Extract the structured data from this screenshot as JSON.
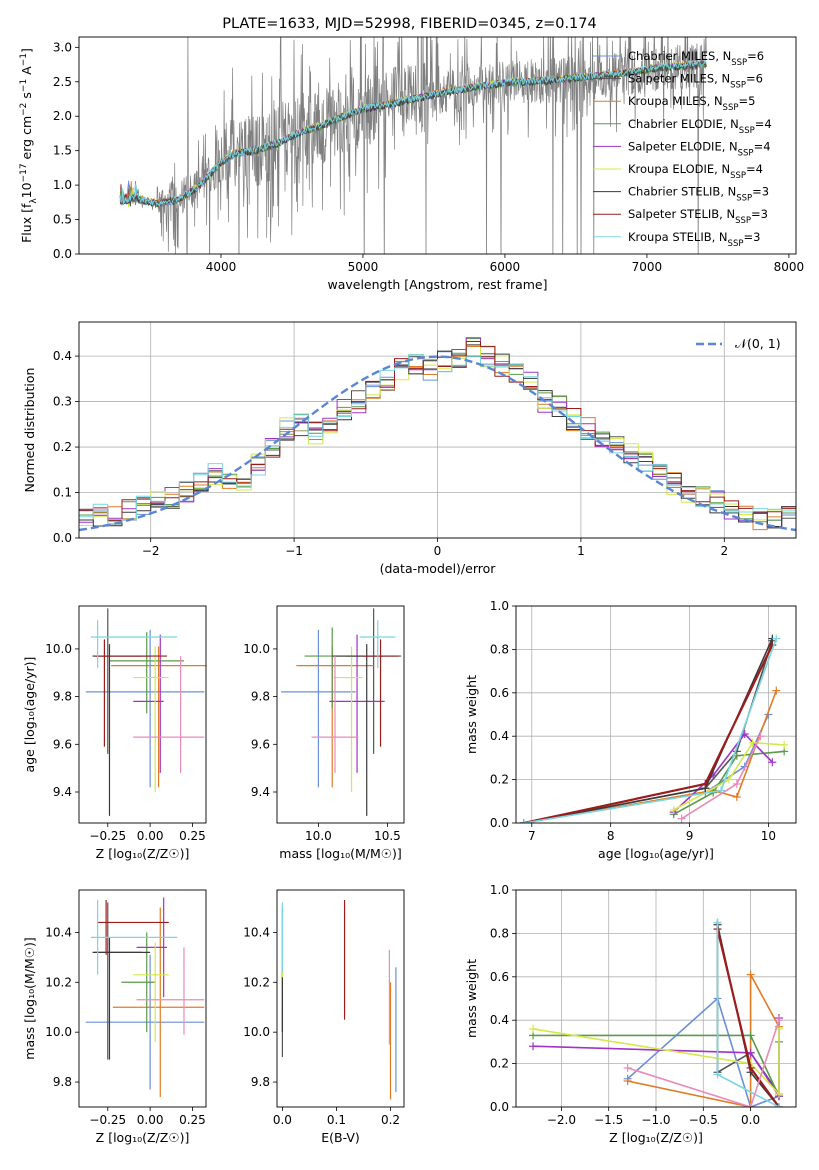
{
  "figure_title": "PLATE=1633, MJD=52998, FIBERID=0345, z=0.174",
  "series_styles": [
    {
      "label": "Chabrier MILES, N$_{SSP}$=6",
      "color": "#6a8fd8"
    },
    {
      "label": "Salpeter MILES, N$_{SSP}$=6",
      "color": "#555555"
    },
    {
      "label": "Kroupa MILES, N$_{SSP}$=5",
      "color": "#e07b24"
    },
    {
      "label": "Chabrier ELODIE, N$_{SSP}$=4",
      "color": "#5a9a4a"
    },
    {
      "label": "Salpeter ELODIE, N$_{SSP}$=4",
      "color": "#a133c7"
    },
    {
      "label": "Kroupa ELODIE, N$_{SSP}$=4",
      "color": "#d4e84a"
    },
    {
      "label": "Chabrier STELIB, N$_{SSP}$=3",
      "color": "#3a3a3a"
    },
    {
      "label": "Salpeter STELIB, N$_{SSP}$=3",
      "color": "#9b1c1c"
    },
    {
      "label": "Kroupa STELIB, N$_{SSP}$=3",
      "color": "#7ad6e0"
    }
  ],
  "legend_text": {
    "spectrum": [
      {
        "pre": "Chabrier MILES, N",
        "sub": "SSP",
        "post": "=6"
      },
      {
        "pre": "Salpeter MILES, N",
        "sub": "SSP",
        "post": "=6"
      },
      {
        "pre": "Kroupa MILES, N",
        "sub": "SSP",
        "post": "=5"
      },
      {
        "pre": "Chabrier ELODIE, N",
        "sub": "SSP",
        "post": "=4"
      },
      {
        "pre": "Salpeter ELODIE, N",
        "sub": "SSP",
        "post": "=4"
      },
      {
        "pre": "Kroupa ELODIE, N",
        "sub": "SSP",
        "post": "=4"
      },
      {
        "pre": "Chabrier STELIB, N",
        "sub": "SSP",
        "post": "=3"
      },
      {
        "pre": "Salpeter STELIB, N",
        "sub": "SSP",
        "post": "=3"
      },
      {
        "pre": "Kroupa STELIB, N",
        "sub": "SSP",
        "post": "=3"
      }
    ],
    "normal": "𝒩(0, 1)"
  },
  "chart_data": [
    {
      "id": "spectrum",
      "type": "line",
      "xlabel": "wavelength [Angstrom, rest frame]",
      "ylabel": "Flux [f_λ 10^-17 erg cm^-2 s^-1 A^-1]",
      "xlim": [
        3000,
        8050
      ],
      "ylim": [
        0,
        3.15
      ],
      "xticks": [
        4000,
        5000,
        6000,
        7000,
        8000
      ],
      "yticks": [
        0.0,
        0.5,
        1.0,
        1.5,
        2.0,
        2.5,
        3.0
      ],
      "grid": false,
      "legend": "top-right",
      "x": [
        3290,
        3400,
        3550,
        3700,
        3850,
        4000,
        4100,
        4250,
        4400,
        4550,
        4700,
        4850,
        5000,
        5150,
        5300,
        5450,
        5600,
        5750,
        5900,
        6050,
        6200,
        6350,
        6500,
        6650,
        6800,
        6950,
        7100,
        7250,
        7420
      ],
      "series_model": [
        0.75,
        0.8,
        0.72,
        0.78,
        0.98,
        1.32,
        1.45,
        1.5,
        1.6,
        1.75,
        1.85,
        1.98,
        2.1,
        2.15,
        2.22,
        2.28,
        2.35,
        2.4,
        2.45,
        2.48,
        2.5,
        2.52,
        2.55,
        2.58,
        2.6,
        2.65,
        2.7,
        2.72,
        2.75
      ]
    },
    {
      "id": "residuals",
      "type": "line",
      "xlabel": "(data-model)/error",
      "ylabel": "Normed distribution",
      "xlim": [
        -2.5,
        2.5
      ],
      "ylim": [
        0,
        0.475
      ],
      "xticks": [
        -2,
        -1,
        0,
        1,
        2
      ],
      "yticks": [
        0.0,
        0.1,
        0.2,
        0.3,
        0.4
      ],
      "grid": true,
      "legend": "top-right",
      "normal_curve": {
        "mean": 0,
        "sigma": 1
      },
      "hist_counts_reference": [
        0.04,
        0.05,
        0.05,
        0.06,
        0.07,
        0.08,
        0.09,
        0.1,
        0.12,
        0.14,
        0.13,
        0.13,
        0.16,
        0.2,
        0.24,
        0.25,
        0.23,
        0.25,
        0.28,
        0.3,
        0.33,
        0.35,
        0.37,
        0.38,
        0.37,
        0.39,
        0.4,
        0.42,
        0.4,
        0.38,
        0.36,
        0.34,
        0.3,
        0.29,
        0.26,
        0.24,
        0.22,
        0.2,
        0.19,
        0.17,
        0.15,
        0.12,
        0.1,
        0.09,
        0.08,
        0.06,
        0.05,
        0.04,
        0.04,
        0.05
      ]
    },
    {
      "id": "age_vs_Z",
      "type": "scatter",
      "xlabel": "Z [log₁₀(Z/Z☉)]",
      "ylabel": "age  [log₁₀(age/yr)]",
      "xlim": [
        -0.42,
        0.33
      ],
      "ylim": [
        9.27,
        10.18
      ],
      "xticks": [
        -0.25,
        0.0,
        0.25
      ],
      "yticks": [
        9.4,
        9.6,
        9.8,
        10.0
      ],
      "xtick_labels": [
        "−0.25",
        "0.00",
        "0.25"
      ],
      "points": [
        {
          "x": 0.0,
          "y": 9.82,
          "xerr": [
            0.38,
            0.32
          ],
          "yerr": [
            0.4,
            0.26
          ]
        },
        {
          "x": -0.25,
          "y": 9.97,
          "xerr": [
            0.08,
            0.2
          ],
          "yerr": [
            0.41,
            0.2
          ]
        },
        {
          "x": 0.05,
          "y": 9.93,
          "xerr": [
            0.28,
            0.28
          ],
          "yerr": [
            0.51,
            0.08
          ]
        },
        {
          "x": -0.02,
          "y": 9.95,
          "xerr": [
            0.22,
            0.22
          ],
          "yerr": [
            0.22,
            0.12
          ]
        },
        {
          "x": 0.06,
          "y": 9.78,
          "xerr": [
            0.16,
            0.02
          ],
          "yerr": [
            0.3,
            0.28
          ]
        },
        {
          "x": 0.03,
          "y": 9.88,
          "xerr": [
            0.13,
            0.08
          ],
          "yerr": [
            0.48,
            0.13
          ]
        },
        {
          "x": -0.24,
          "y": 9.97,
          "xerr": [
            0.1,
            0.24
          ],
          "yerr": [
            0.67,
            0.05
          ]
        },
        {
          "x": -0.27,
          "y": 9.97,
          "xerr": [
            0.05,
            0.37
          ],
          "yerr": [
            0.38,
            0.07
          ]
        },
        {
          "x": -0.31,
          "y": 10.05,
          "xerr": [
            0.04,
            0.47
          ],
          "yerr": [
            0.13,
            0.07
          ]
        },
        {
          "x": 0.18,
          "y": 9.63,
          "xerr": [
            0.28,
            0.14
          ],
          "yerr": [
            0.15,
            0.34
          ]
        }
      ]
    },
    {
      "id": "age_vs_mass",
      "type": "scatter",
      "xlabel": "mass [log₁₀(M/M☉)]",
      "ylabel": "",
      "xlim": [
        9.7,
        10.62
      ],
      "ylim": [
        9.27,
        10.18
      ],
      "xticks": [
        10.0,
        10.5
      ],
      "yticks": [
        9.4,
        9.6,
        9.8,
        10.0
      ],
      "points": [
        {
          "x": 10.0,
          "y": 9.82,
          "xerr": [
            0.27,
            0.27
          ],
          "yerr": [
            0.4,
            0.26
          ]
        },
        {
          "x": 10.4,
          "y": 9.97,
          "xerr": [
            0.2,
            0.2
          ],
          "yerr": [
            0.41,
            0.2
          ]
        },
        {
          "x": 10.1,
          "y": 9.93,
          "xerr": [
            0.26,
            0.3
          ],
          "yerr": [
            0.51,
            0.08
          ]
        },
        {
          "x": 10.1,
          "y": 9.97,
          "xerr": [
            0.2,
            0.2
          ],
          "yerr": [
            0.22,
            0.12
          ]
        },
        {
          "x": 10.28,
          "y": 9.78,
          "xerr": [
            0.2,
            0.2
          ],
          "yerr": [
            0.3,
            0.28
          ]
        },
        {
          "x": 10.24,
          "y": 9.88,
          "xerr": [
            0.13,
            0.08
          ],
          "yerr": [
            0.48,
            0.13
          ]
        },
        {
          "x": 10.35,
          "y": 9.97,
          "xerr": [
            0.25,
            0.12
          ],
          "yerr": [
            0.67,
            0.05
          ]
        },
        {
          "x": 10.45,
          "y": 9.97,
          "xerr": [
            0.13,
            0.13
          ],
          "yerr": [
            0.38,
            0.07
          ]
        },
        {
          "x": 10.43,
          "y": 10.05,
          "xerr": [
            0.13,
            0.13
          ],
          "yerr": [
            0.13,
            0.07
          ]
        },
        {
          "x": 10.12,
          "y": 9.63,
          "xerr": [
            0.17,
            0.17
          ],
          "yerr": [
            0.15,
            0.34
          ]
        }
      ]
    },
    {
      "id": "massweight_vs_age",
      "type": "line",
      "xlabel": "age  [log₁₀(age/yr)]",
      "ylabel": "mass weight",
      "xlim": [
        6.8,
        10.35
      ],
      "ylim": [
        0,
        1.0
      ],
      "xticks": [
        7,
        8,
        9,
        10
      ],
      "yticks": [
        0.0,
        0.2,
        0.4,
        0.6,
        0.8,
        1.0
      ],
      "grid": true,
      "series": [
        {
          "x": [
            6.9,
            9.2,
            9.7,
            10.0
          ],
          "y": [
            0.0,
            0.14,
            0.26,
            0.5
          ]
        },
        {
          "x": [
            6.9,
            9.2,
            9.6,
            10.05
          ],
          "y": [
            0.0,
            0.16,
            0.33,
            0.84
          ]
        },
        {
          "x": [
            6.9,
            9.3,
            9.6,
            10.1
          ],
          "y": [
            0.0,
            0.15,
            0.12,
            0.61
          ]
        },
        {
          "x": [
            8.8,
            9.3,
            9.6,
            10.2
          ],
          "y": [
            0.04,
            0.14,
            0.31,
            0.33
          ]
        },
        {
          "x": [
            8.8,
            9.3,
            9.7,
            10.05
          ],
          "y": [
            0.05,
            0.22,
            0.41,
            0.28
          ]
        },
        {
          "x": [
            8.8,
            9.5,
            9.8,
            10.2
          ],
          "y": [
            0.06,
            0.2,
            0.37,
            0.36
          ]
        },
        {
          "x": [
            6.9,
            9.2,
            10.05
          ],
          "y": [
            0.0,
            0.16,
            0.85
          ]
        },
        {
          "x": [
            6.9,
            9.2,
            10.05
          ],
          "y": [
            0.0,
            0.18,
            0.82
          ]
        },
        {
          "x": [
            6.9,
            9.4,
            10.1
          ],
          "y": [
            0.0,
            0.15,
            0.85
          ]
        },
        {
          "x": [
            8.9,
            9.6,
            9.9
          ],
          "y": [
            0.02,
            0.18,
            0.4
          ]
        }
      ]
    },
    {
      "id": "mass_vs_Z",
      "type": "scatter",
      "xlabel": "Z [log₁₀(Z/Z☉)]",
      "ylabel": "mass [log₁₀(M/M☉)]",
      "xlim": [
        -0.42,
        0.33
      ],
      "ylim": [
        9.7,
        10.57
      ],
      "xticks": [
        -0.25,
        0.0,
        0.25
      ],
      "yticks": [
        9.8,
        10.0,
        10.2,
        10.4
      ],
      "xtick_labels": [
        "−0.25",
        "0.00",
        "0.25"
      ],
      "points": [
        {
          "x": 0.0,
          "y": 10.04,
          "xerr": [
            0.38,
            0.32
          ],
          "yerr": [
            0.27,
            0.27
          ]
        },
        {
          "x": -0.25,
          "y": 10.32,
          "xerr": [
            0.08,
            0.2
          ],
          "yerr": [
            0.43,
            0.2
          ]
        },
        {
          "x": 0.06,
          "y": 10.1,
          "xerr": [
            0.28,
            0.26
          ],
          "yerr": [
            0.36,
            0.4
          ]
        },
        {
          "x": -0.02,
          "y": 10.2,
          "xerr": [
            0.15,
            0.05
          ],
          "yerr": [
            0.2,
            0.2
          ]
        },
        {
          "x": 0.08,
          "y": 10.34,
          "xerr": [
            0.16,
            0.02
          ],
          "yerr": [
            0.2,
            0.2
          ]
        },
        {
          "x": 0.03,
          "y": 10.23,
          "xerr": [
            0.13,
            0.08
          ],
          "yerr": [
            0.27,
            0.13
          ]
        },
        {
          "x": -0.24,
          "y": 10.32,
          "xerr": [
            0.1,
            0.24
          ],
          "yerr": [
            0.43,
            0.06
          ]
        },
        {
          "x": -0.26,
          "y": 10.44,
          "xerr": [
            0.05,
            0.37
          ],
          "yerr": [
            0.13,
            0.09
          ]
        },
        {
          "x": -0.31,
          "y": 10.38,
          "xerr": [
            0.04,
            0.47
          ],
          "yerr": [
            0.15,
            0.15
          ]
        },
        {
          "x": 0.2,
          "y": 10.13,
          "xerr": [
            0.28,
            0.12
          ],
          "yerr": [
            0.14,
            0.21
          ]
        }
      ]
    },
    {
      "id": "mass_vs_EBV",
      "type": "scatter",
      "xlabel": "E(B-V)",
      "ylabel": "",
      "xlim": [
        -0.01,
        0.225
      ],
      "ylim": [
        9.7,
        10.57
      ],
      "xticks": [
        0.0,
        0.1,
        0.2
      ],
      "yticks": [
        9.8,
        10.0,
        10.2,
        10.4
      ],
      "points": [
        {
          "x": 0.21,
          "y": 10.0,
          "xerr": [
            0,
            0
          ],
          "yerr": [
            0.24,
            0.26
          ]
        },
        {
          "x": 0.0,
          "y": 10.1,
          "xerr": [
            0,
            0
          ],
          "yerr": [
            0.2,
            0.13
          ]
        },
        {
          "x": 0.2,
          "y": 10.0,
          "xerr": [
            0,
            0
          ],
          "yerr": [
            0.27,
            0.2
          ]
        },
        {
          "x": 0.0,
          "y": 10.2,
          "xerr": [
            0,
            0
          ],
          "yerr": [
            0.2,
            0.2
          ]
        },
        {
          "x": 0.0,
          "y": 10.3,
          "xerr": [
            0,
            0
          ],
          "yerr": [
            0.2,
            0.2
          ]
        },
        {
          "x": 0.0,
          "y": 10.3,
          "xerr": [
            0,
            0
          ],
          "yerr": [
            0.2,
            0.2
          ]
        },
        {
          "x": 0.0,
          "y": 10.2,
          "xerr": [
            0,
            0
          ],
          "yerr": [
            0.2,
            0.02
          ]
        },
        {
          "x": 0.115,
          "y": 10.3,
          "xerr": [
            0,
            0
          ],
          "yerr": [
            0.25,
            0.23
          ]
        },
        {
          "x": 0.0,
          "y": 10.38,
          "xerr": [
            0,
            0
          ],
          "yerr": [
            0.14,
            0.14
          ]
        },
        {
          "x": 0.198,
          "y": 10.15,
          "xerr": [
            0,
            0
          ],
          "yerr": [
            0.2,
            0.18
          ]
        }
      ]
    },
    {
      "id": "massweight_vs_Z",
      "type": "line",
      "xlabel": "Z [log₁₀(Z/Z☉)]",
      "ylabel": "mass weight",
      "xlim": [
        -2.48,
        0.48
      ],
      "ylim": [
        0,
        1.0
      ],
      "xticks": [
        -2.0,
        -1.5,
        -1.0,
        -0.5,
        0.0
      ],
      "xtick_labels": [
        "−2.0",
        "−1.5",
        "−1.0",
        "−0.5",
        "0.0"
      ],
      "yticks": [
        0.0,
        0.2,
        0.4,
        0.6,
        0.8,
        1.0
      ],
      "grid": true,
      "series": [
        {
          "x": [
            -1.3,
            -0.35,
            0.0,
            0.3
          ],
          "y": [
            0.13,
            0.5,
            0.0,
            0.05
          ]
        },
        {
          "x": [
            -0.35,
            -0.35,
            0.0,
            0.3
          ],
          "y": [
            0.85,
            0.16,
            0.25,
            0.06
          ]
        },
        {
          "x": [
            -1.3,
            0.0,
            0.0,
            0.3
          ],
          "y": [
            0.12,
            0.0,
            0.61,
            0.37
          ]
        },
        {
          "x": [
            -2.3,
            0.0,
            0.3,
            0.3
          ],
          "y": [
            0.33,
            0.33,
            0.05,
            0.3
          ]
        },
        {
          "x": [
            -2.3,
            0.0,
            0.3,
            0.3
          ],
          "y": [
            0.28,
            0.25,
            0.05,
            0.41
          ]
        },
        {
          "x": [
            -2.3,
            0.0,
            0.3,
            0.3
          ],
          "y": [
            0.36,
            0.2,
            0.06,
            0.36
          ]
        },
        {
          "x": [
            -0.35,
            0.0,
            0.3
          ],
          "y": [
            0.84,
            0.16,
            0.0
          ]
        },
        {
          "x": [
            -0.35,
            0.0,
            0.3
          ],
          "y": [
            0.82,
            0.18,
            0.0
          ]
        },
        {
          "x": [
            -0.35,
            -0.35,
            0.3
          ],
          "y": [
            0.85,
            0.15,
            0.0
          ]
        },
        {
          "x": [
            -1.3,
            0.0,
            0.3
          ],
          "y": [
            0.18,
            0.0,
            0.4
          ]
        }
      ]
    }
  ]
}
